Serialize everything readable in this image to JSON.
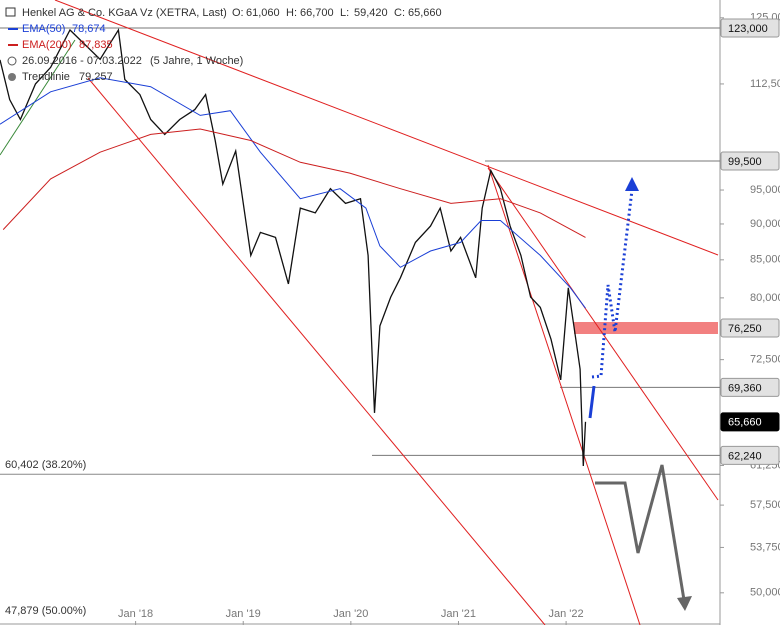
{
  "chart_data": {
    "type": "line",
    "log_scale": true,
    "xlim": [
      2016.74,
      2023.43
    ],
    "ylim": [
      47.5,
      128.6
    ],
    "xticks": [
      {
        "value": 2018,
        "label": "Jan '18"
      },
      {
        "value": 2019,
        "label": "Jan '19"
      },
      {
        "value": 2020,
        "label": "Jan '20"
      },
      {
        "value": 2021,
        "label": "Jan '21"
      },
      {
        "value": 2022,
        "label": "Jan '22"
      }
    ],
    "yticks": [
      {
        "value": 125,
        "label": "125,000"
      },
      {
        "value": 112.5,
        "label": "112,500"
      },
      {
        "value": 95,
        "label": "95,000"
      },
      {
        "value": 90,
        "label": "90,000"
      },
      {
        "value": 85,
        "label": "85,000"
      },
      {
        "value": 80,
        "label": "80,000"
      },
      {
        "value": 72.5,
        "label": "72,500"
      },
      {
        "value": 61.25,
        "label": "61,250"
      },
      {
        "value": 57.5,
        "label": "57,500"
      },
      {
        "value": 53.75,
        "label": "53,750"
      },
      {
        "value": 50,
        "label": "50,000"
      }
    ],
    "ohlc": [
      {
        "name": "O:",
        "value": {
          "value": 61.06,
          "label": "61,060"
        }
      },
      {
        "name": "H:",
        "value": {
          "value": 66.7,
          "label": "66,700"
        }
      },
      {
        "name": "L:",
        "value": {
          "value": 59.42,
          "label": "59,420"
        }
      },
      {
        "name": "C:",
        "value": {
          "value": 65.66,
          "label": "65,660"
        }
      }
    ],
    "period": "26.09.2016 - 07.03.2022",
    "interval": "(5 Jahre, 1 Woche)",
    "trendline": {
      "name": "Trendlinie",
      "value": {
        "value": 79.257,
        "label": "79,257"
      }
    },
    "series": [
      {
        "name": "Henkel AG & Co. KGaA Vz (XETRA, Last)",
        "color": "#111111",
        "x": [
          2016.74,
          2016.83,
          2016.93,
          2017.07,
          2017.21,
          2017.39,
          2017.67,
          2017.84,
          2017.9,
          2018.04,
          2018.14,
          2018.27,
          2018.41,
          2018.55,
          2018.65,
          2018.74,
          2018.81,
          2018.93,
          2019.07,
          2019.16,
          2019.3,
          2019.42,
          2019.53,
          2019.67,
          2019.81,
          2019.95,
          2020.09,
          2020.16,
          2020.22,
          2020.27,
          2020.37,
          2020.46,
          2020.6,
          2020.74,
          2020.83,
          2020.93,
          2021.02,
          2021.16,
          2021.22,
          2021.3,
          2021.39,
          2021.48,
          2021.58,
          2021.67,
          2021.76,
          2021.86,
          2021.95,
          2022.02,
          2022.09,
          2022.13,
          2022.16,
          2022.18
        ],
        "values": [
          116.9,
          109.7,
          106.3,
          112.5,
          115.5,
          122.6,
          117.0,
          122.6,
          113.3,
          110.6,
          106.3,
          103.8,
          106.3,
          108.0,
          110.6,
          102.8,
          95.9,
          101.1,
          85.6,
          88.8,
          88.1,
          81.8,
          92.3,
          91.6,
          95.2,
          93.0,
          93.7,
          85.6,
          66.6,
          76.5,
          80.1,
          82.6,
          87.4,
          89.7,
          92.3,
          86.2,
          88.1,
          82.6,
          92.3,
          98.0,
          95.2,
          89.7,
          85.6,
          80.1,
          78.8,
          74.9,
          70.2,
          81.3,
          74.9,
          71.4,
          61.2,
          65.66
        ]
      },
      {
        "name": "EMA(50)",
        "color": "#1a3fd6",
        "last": {
          "value": 78.674,
          "label": "78,674"
        },
        "x": [
          2016.74,
          2017.21,
          2017.67,
          2018.14,
          2018.6,
          2018.88,
          2019.16,
          2019.53,
          2019.9,
          2020.14,
          2020.27,
          2020.46,
          2020.74,
          2021.02,
          2021.21,
          2021.39,
          2021.76,
          2022.04,
          2022.18
        ],
        "values": [
          105.5,
          111.1,
          113.6,
          112.0,
          107.0,
          107.8,
          100.9,
          93.7,
          95.2,
          92.3,
          86.9,
          84.0,
          86.2,
          87.4,
          90.5,
          90.5,
          85.6,
          81.3,
          78.7
        ]
      },
      {
        "name": "EMA(200)",
        "color": "#cc1f1f",
        "last": {
          "value": 87.835,
          "label": "87,835"
        },
        "x": [
          2016.77,
          2017.21,
          2017.67,
          2018.14,
          2018.6,
          2019.07,
          2019.53,
          2019.99,
          2020.46,
          2020.93,
          2021.39,
          2021.76,
          2022.18
        ],
        "values": [
          89.2,
          96.7,
          100.9,
          103.8,
          104.7,
          102.8,
          99.3,
          97.6,
          95.2,
          93.0,
          93.7,
          91.6,
          88.1
        ]
      }
    ],
    "levels": [
      {
        "value": 123,
        "label": "123,000"
      },
      {
        "value": 99.5,
        "label": "99,500"
      },
      {
        "value": 76.25,
        "label": "76,250"
      },
      {
        "value": 69.36,
        "label": "69,360"
      },
      {
        "value": 65.66,
        "label": "65,660"
      },
      {
        "value": 62.24,
        "label": "62,240"
      }
    ],
    "fib_levels": [
      {
        "value": 60.402,
        "label": "60,402 (38.20%)"
      },
      {
        "value": 47.879,
        "label": "47,879 (50.00%)"
      }
    ]
  }
}
